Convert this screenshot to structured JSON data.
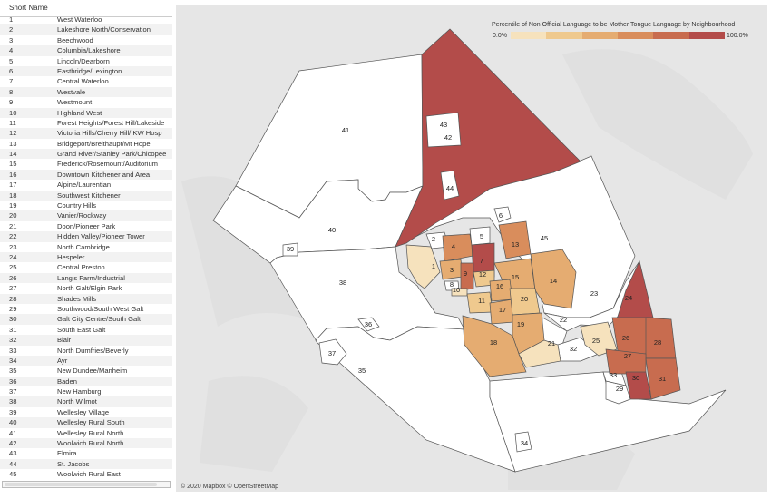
{
  "table": {
    "header": "Short Name",
    "rows": [
      {
        "num": "1",
        "name": "West Waterloo"
      },
      {
        "num": "2",
        "name": "Lakeshore North/Conservation"
      },
      {
        "num": "3",
        "name": "Beechwood"
      },
      {
        "num": "4",
        "name": "Columbia/Lakeshore"
      },
      {
        "num": "5",
        "name": "Lincoln/Dearborn"
      },
      {
        "num": "6",
        "name": "Eastbridge/Lexington"
      },
      {
        "num": "7",
        "name": "Central Waterloo"
      },
      {
        "num": "8",
        "name": "Westvale"
      },
      {
        "num": "9",
        "name": "Westmount"
      },
      {
        "num": "10",
        "name": "Highland West"
      },
      {
        "num": "11",
        "name": "Forest Heights/Forest Hill/Lakeside"
      },
      {
        "num": "12",
        "name": "Victoria Hills/Cherry Hill/ KW Hosp"
      },
      {
        "num": "13",
        "name": "Bridgeport/Breithaupt/Mt Hope"
      },
      {
        "num": "14",
        "name": "Grand River/Stanley Park/Chicopee"
      },
      {
        "num": "15",
        "name": "Frederick/Rosemount/Auditorium"
      },
      {
        "num": "16",
        "name": "Downtown Kitchener and Area"
      },
      {
        "num": "17",
        "name": "Alpine/Laurentian"
      },
      {
        "num": "18",
        "name": "Southwest Kitchener"
      },
      {
        "num": "19",
        "name": "Country Hills"
      },
      {
        "num": "20",
        "name": "Vanier/Rockway"
      },
      {
        "num": "21",
        "name": "Doon/Pioneer Park"
      },
      {
        "num": "22",
        "name": "Hidden Valley/Pioneer Tower"
      },
      {
        "num": "23",
        "name": "North Cambridge"
      },
      {
        "num": "24",
        "name": "Hespeler"
      },
      {
        "num": "25",
        "name": "Central Preston"
      },
      {
        "num": "26",
        "name": "Lang's Farm/Industrial"
      },
      {
        "num": "27",
        "name": "North Galt/Elgin Park"
      },
      {
        "num": "28",
        "name": "Shades Mills"
      },
      {
        "num": "29",
        "name": "Southwood/South West Galt"
      },
      {
        "num": "30",
        "name": "Galt City Centre/South Galt"
      },
      {
        "num": "31",
        "name": "South East Galt"
      },
      {
        "num": "32",
        "name": "Blair"
      },
      {
        "num": "33",
        "name": "North Dumfries/Beverly"
      },
      {
        "num": "34",
        "name": "Ayr"
      },
      {
        "num": "35",
        "name": "New Dundee/Manheim"
      },
      {
        "num": "36",
        "name": "Baden"
      },
      {
        "num": "37",
        "name": "New Hamburg"
      },
      {
        "num": "38",
        "name": "North Wilmot"
      },
      {
        "num": "39",
        "name": "Wellesley Village"
      },
      {
        "num": "40",
        "name": "Wellesley Rural South"
      },
      {
        "num": "41",
        "name": "Wellesley Rural North"
      },
      {
        "num": "42",
        "name": "Woolwich Rural North"
      },
      {
        "num": "43",
        "name": "Elmira"
      },
      {
        "num": "44",
        "name": "St. Jacobs"
      },
      {
        "num": "45",
        "name": "Woolwich Rural East"
      }
    ]
  },
  "legend": {
    "title": "Percentile of Non Official Language to be Mother Tongue Language by Neighbourhood",
    "min_label": "0.0%",
    "max_label": "100.0%",
    "colors": [
      "#f6e2bd",
      "#efc98e",
      "#e5ac71",
      "#d98d5c",
      "#c86c4f",
      "#b34c4a"
    ]
  },
  "attribution": "© 2020 Mapbox © OpenStreetMap",
  "map_labels": [
    "1",
    "2",
    "3",
    "4",
    "5",
    "6",
    "7",
    "8",
    "9",
    "10",
    "11",
    "12",
    "13",
    "14",
    "15",
    "16",
    "17",
    "18",
    "19",
    "20",
    "21",
    "22",
    "23",
    "24",
    "25",
    "26",
    "27",
    "28",
    "29",
    "30",
    "31",
    "32",
    "33",
    "34",
    "35",
    "36",
    "37",
    "38",
    "39",
    "40",
    "41",
    "42",
    "43",
    "44",
    "45"
  ]
}
